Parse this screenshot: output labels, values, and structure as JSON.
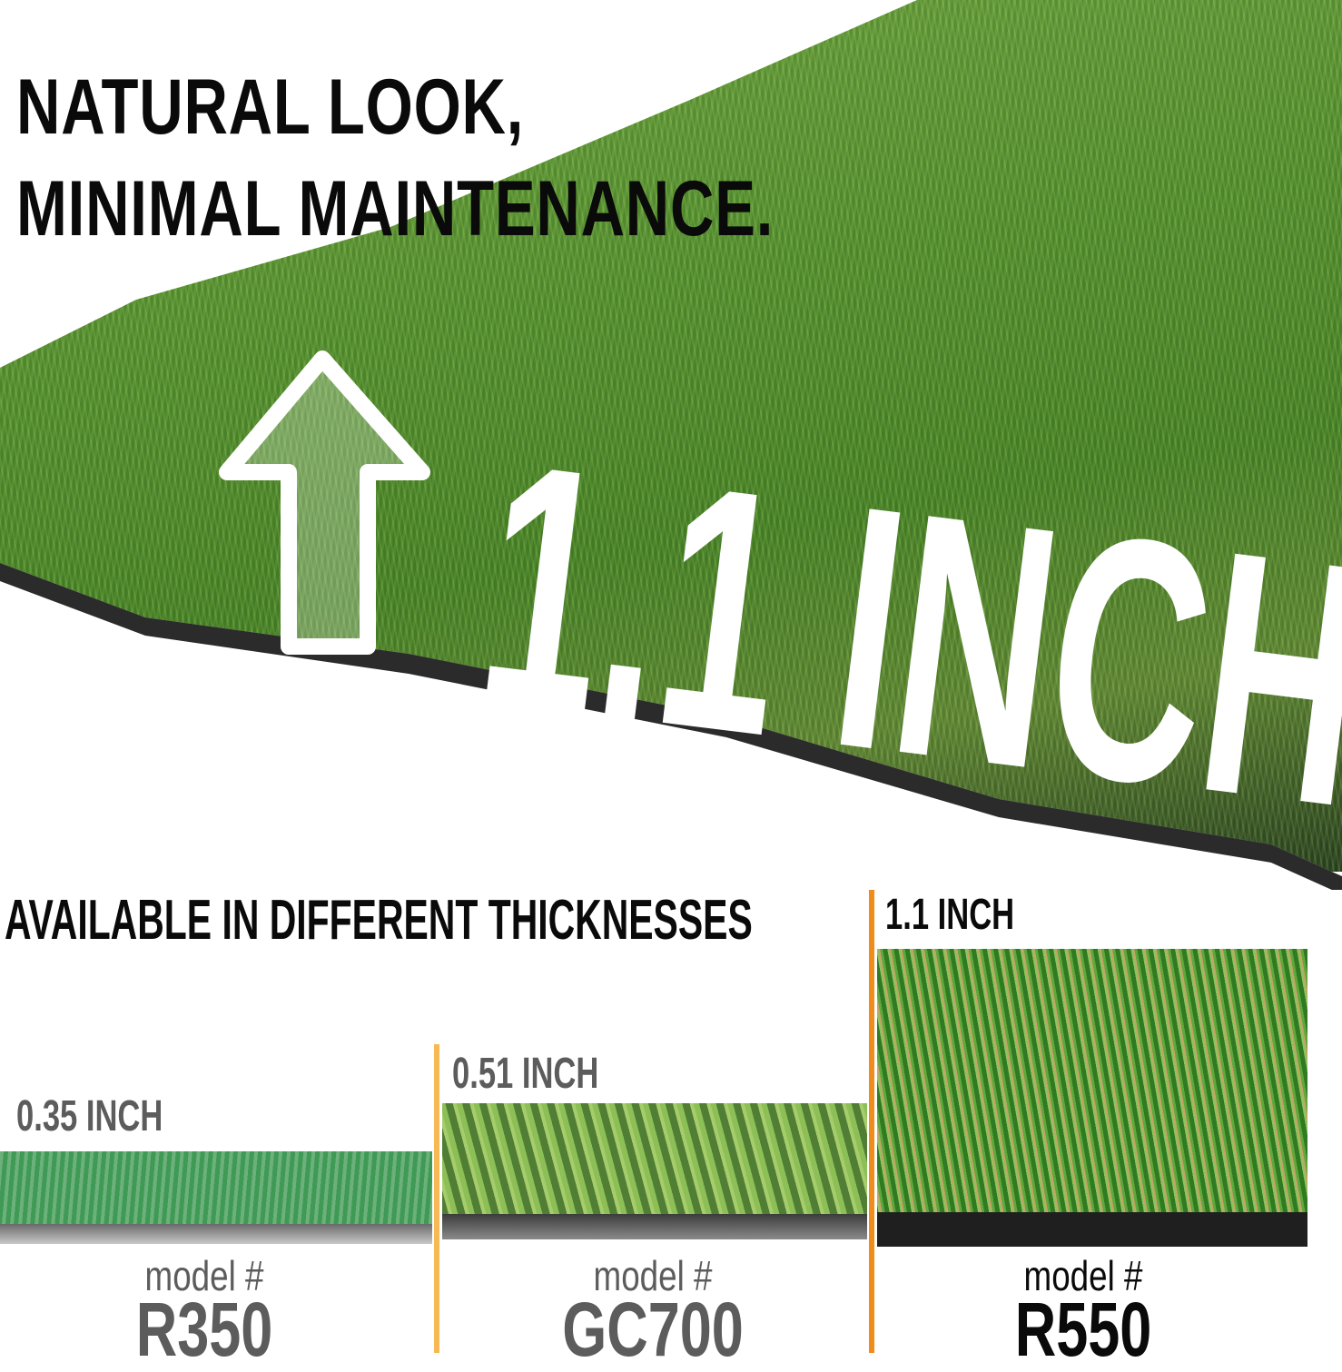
{
  "headline": {
    "line1": "NATURAL LOOK,",
    "line2": "MINIMAL MAINTENANCE."
  },
  "hero": {
    "height_label": "1.1 INCH",
    "icon": "arrow-up-outline-icon"
  },
  "section_title": "AVAILABLE IN DIFFERENT THICKNESSES",
  "products": [
    {
      "thickness": "0.35 INCH",
      "model_label": "model #",
      "model": "R350"
    },
    {
      "thickness": "0.51 INCH",
      "model_label": "model #",
      "model": "GC700"
    },
    {
      "thickness": "1.1 INCH",
      "model_label": "model #",
      "model": "R550"
    }
  ],
  "colors": {
    "divider_light": "#f6b955",
    "divider_dark": "#f08c1a",
    "grass": "#5f9a35",
    "text_dark": "#0a0a0a",
    "text_gray": "#5c5c5c"
  }
}
